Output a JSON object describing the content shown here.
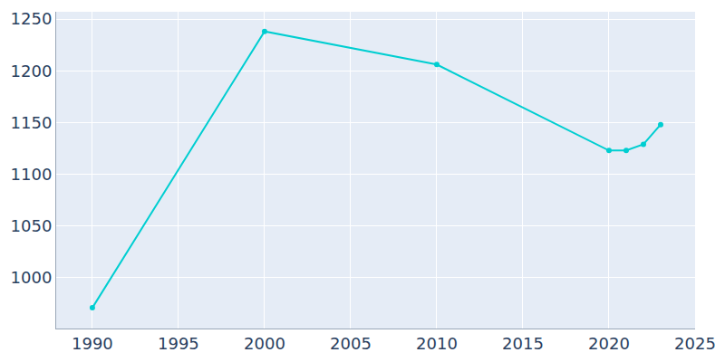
{
  "chart_data": {
    "type": "line",
    "x": [
      1990,
      2000,
      2010,
      2020,
      2021,
      2022,
      2023
    ],
    "values": [
      971,
      1238,
      1206,
      1123,
      1123,
      1129,
      1148
    ],
    "color": "#00ced1",
    "marker": "circle",
    "xlim": [
      1987.9,
      2025
    ],
    "xticks": [
      1990,
      1995,
      2000,
      2005,
      2010,
      2015,
      2020,
      2025
    ],
    "ylim": [
      951,
      1257
    ],
    "yticks": [
      1000,
      1050,
      1100,
      1150,
      1200,
      1250
    ],
    "grid": true
  }
}
